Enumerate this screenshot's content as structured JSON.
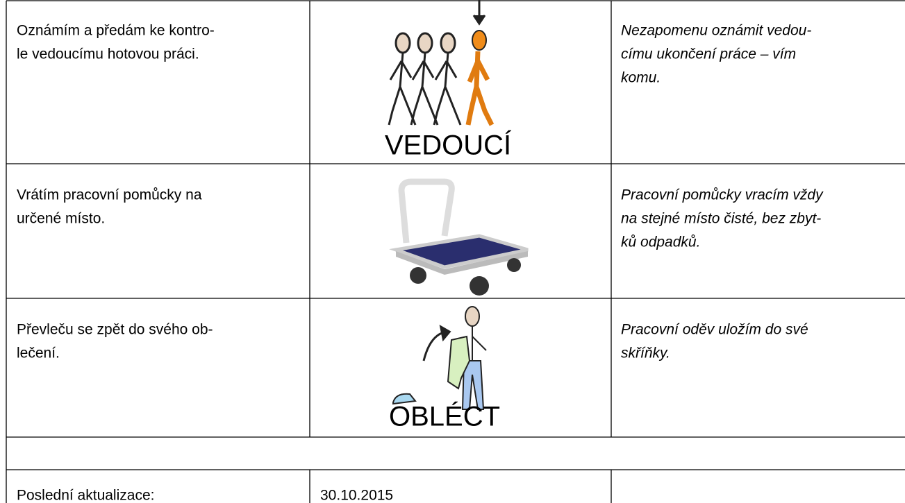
{
  "rows": [
    {
      "text": [
        "Oznámím a předám ke kontro-",
        "le vedoucímu hotovou práci."
      ],
      "picto_label": "VEDOUCÍ",
      "note": [
        "Nezapomenu oznámit vedou-",
        "címu ukončení práce – vím",
        "komu."
      ]
    },
    {
      "text": [
        "Vrátím pracovní pomůcky na",
        "určené místo."
      ],
      "note": [
        "Pracovní pomůcky vracím vždy",
        "na stejné místo čisté, bez zbyt-",
        "ků odpadků."
      ]
    },
    {
      "text": [
        "Převleču se zpět do svého ob-",
        "lečení."
      ],
      "picto_label": "OBLÉCT",
      "note": [
        "Pracovní oděv uložím do své",
        "skříňky."
      ]
    }
  ],
  "footer": {
    "label": "Poslední aktualizace:",
    "date": "30.10.2015"
  }
}
